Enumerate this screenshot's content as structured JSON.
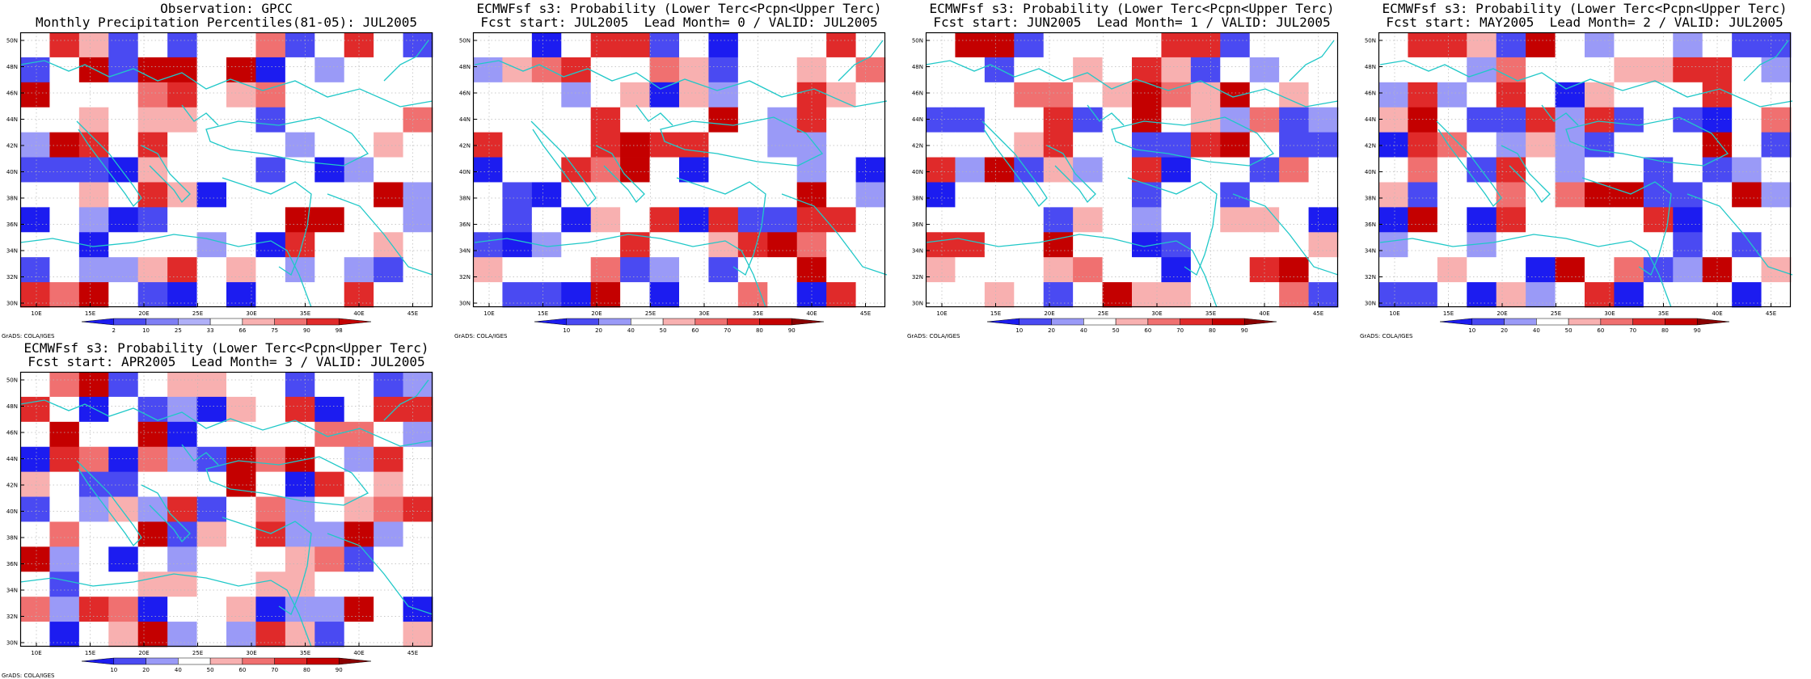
{
  "panels": [
    {
      "title_line1": "Observation: GPCC",
      "title_line2": "Monthly Precipitation Percentiles(81-05): JUL2005",
      "colorbar_labels": [
        "2",
        "10",
        "25",
        "33",
        "66",
        "75",
        "90",
        "98"
      ],
      "colorbar_colors": [
        "#1c1cf0",
        "#4a4af2",
        "#7f7ff5",
        "#b0b0f8",
        "#ffffff",
        "#f8b0b0",
        "#f07070",
        "#e02a2a",
        "#c40000"
      ],
      "credit": "GrADS: COLA/IGES"
    },
    {
      "title_line1": "ECMWFsf s3: Probability (Lower Terc<Pcpn<Upper Terc)",
      "title_line2": "Fcst start: JUL2005  Lead Month= 0 / VALID: JUL2005",
      "colorbar_labels": [
        "10",
        "20",
        "40",
        "50",
        "60",
        "70",
        "80",
        "90"
      ],
      "colorbar_colors": [
        "#1c1cf0",
        "#4a4af2",
        "#9a9af7",
        "#ffffff",
        "#f8b0b0",
        "#f07070",
        "#e02a2a",
        "#c40000",
        "#8a0000"
      ],
      "credit": "GrADS: COLA/IGES"
    },
    {
      "title_line1": "ECMWFsf s3: Probability (Lower Terc<Pcpn<Upper Terc)",
      "title_line2": "Fcst start: JUN2005  Lead Month= 1 / VALID: JUL2005",
      "colorbar_labels": [
        "10",
        "20",
        "40",
        "50",
        "60",
        "70",
        "80",
        "90"
      ],
      "colorbar_colors": [
        "#1c1cf0",
        "#4a4af2",
        "#9a9af7",
        "#ffffff",
        "#f8b0b0",
        "#f07070",
        "#e02a2a",
        "#c40000",
        "#8a0000"
      ],
      "credit": "GrADS: COLA/IGES"
    },
    {
      "title_line1": "ECMWFsf s3: Probability (Lower Terc<Pcpn<Upper Terc)",
      "title_line2": "Fcst start: MAY2005  Lead Month= 2 / VALID: JUL2005",
      "colorbar_labels": [
        "10",
        "20",
        "40",
        "50",
        "60",
        "70",
        "80",
        "90"
      ],
      "colorbar_colors": [
        "#1c1cf0",
        "#4a4af2",
        "#9a9af7",
        "#ffffff",
        "#f8b0b0",
        "#f07070",
        "#e02a2a",
        "#c40000",
        "#8a0000"
      ],
      "credit": "GrADS: COLA/IGES"
    },
    {
      "title_line1": "ECMWFsf s3: Probability (Lower Terc<Pcpn<Upper Terc)",
      "title_line2": "Fcst start: APR2005  Lead Month= 3 / VALID: JUL2005",
      "colorbar_labels": [
        "10",
        "20",
        "40",
        "50",
        "60",
        "70",
        "80",
        "90"
      ],
      "colorbar_colors": [
        "#1c1cf0",
        "#4a4af2",
        "#9a9af7",
        "#ffffff",
        "#f8b0b0",
        "#f07070",
        "#e02a2a",
        "#c40000",
        "#8a0000"
      ],
      "credit": "GrADS: COLA/IGES"
    }
  ],
  "axes": {
    "lon_ticks": [
      "10E",
      "15E",
      "20E",
      "25E",
      "30E",
      "35E",
      "40E",
      "45E"
    ],
    "lat_ticks": [
      "30N",
      "32N",
      "34N",
      "36N",
      "38N",
      "40N",
      "42N",
      "44N",
      "46N",
      "48N",
      "50N"
    ],
    "coast_color": "#20c8c8",
    "grid_color": "#b8b8b8"
  }
}
